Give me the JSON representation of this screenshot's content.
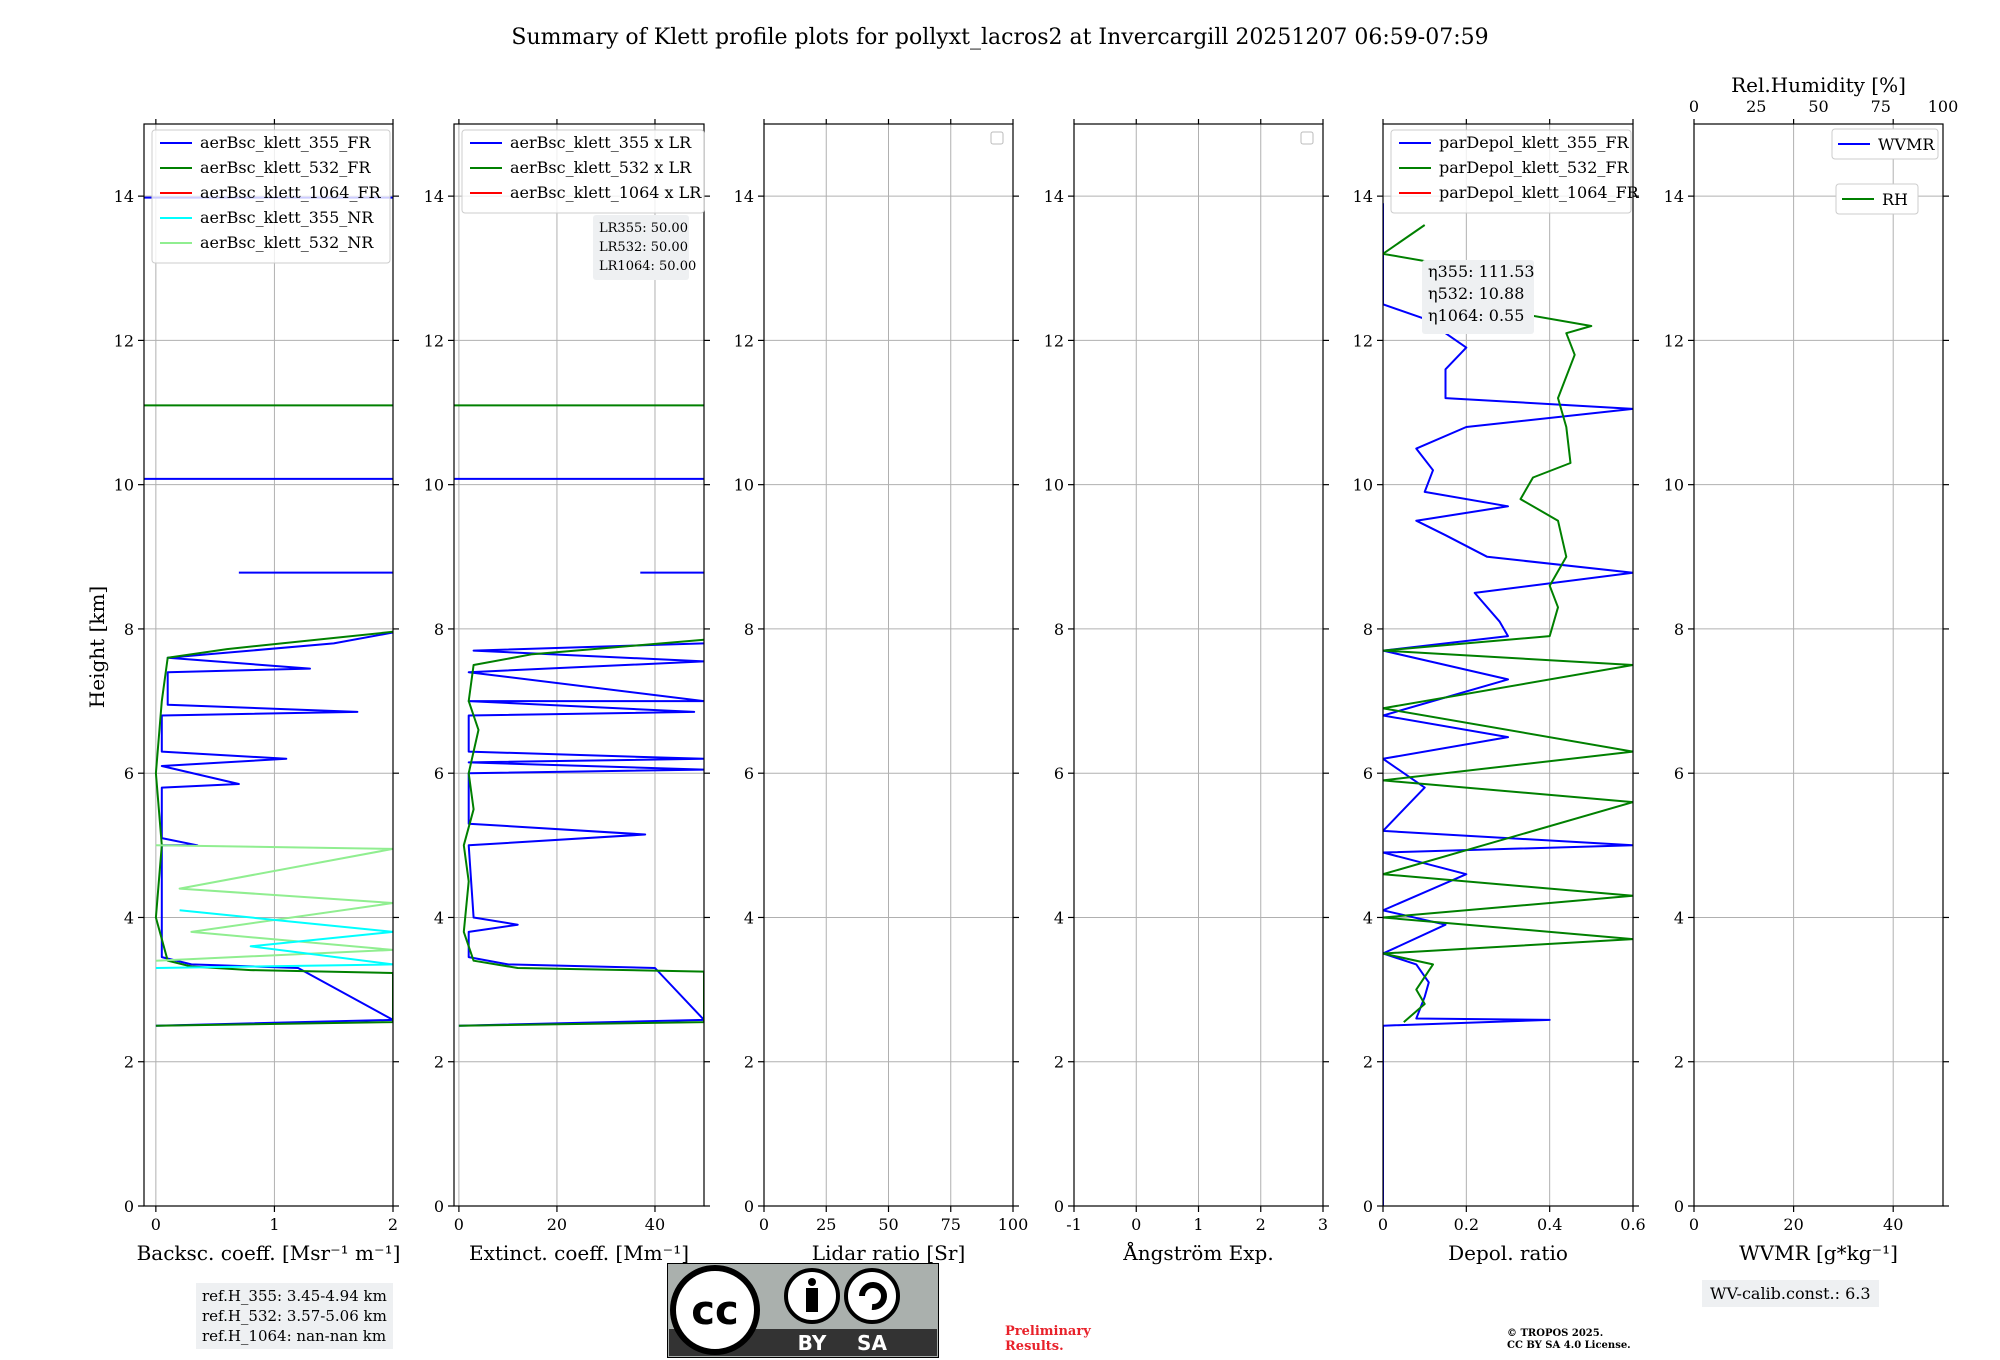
{
  "figure": {
    "title": "Summary of Klett profile plots for pollyxt_lacros2 at Invercargill 20251207 06:59-07:59"
  },
  "colors": {
    "blue": "#0000ff",
    "green": "#008000",
    "red": "#ff0000",
    "cyan": "#00ffff",
    "lightgreen": "#90ee90",
    "grid": "#b0b0b0"
  },
  "chart_data": [
    {
      "id": "bsc",
      "type": "line",
      "xlabel": "Backsc. coeff. [Msr⁻¹ m⁻¹]",
      "ylabel": "Height [km]",
      "xlim": [
        -0.1,
        2.0
      ],
      "ylim": [
        0,
        15
      ],
      "xticks": [
        0,
        1,
        2
      ],
      "yticks": [
        0,
        2,
        4,
        6,
        8,
        10,
        12,
        14
      ],
      "legend": [
        "aerBsc_klett_355_FR",
        "aerBsc_klett_532_FR",
        "aerBsc_klett_1064_FR",
        "aerBsc_klett_355_NR",
        "aerBsc_klett_532_NR"
      ],
      "legend_colors": [
        "blue",
        "green",
        "red",
        "cyan",
        "lightgreen"
      ],
      "series": [
        {
          "name": "aerBsc_klett_355_FR",
          "color": "blue",
          "points": [
            [
              0.0,
              2.5
            ],
            [
              2.0,
              2.58
            ],
            [
              1.2,
              3.3
            ],
            [
              0.3,
              3.35
            ],
            [
              0.05,
              3.45
            ],
            [
              0.05,
              5
            ],
            [
              0.35,
              5.0
            ],
            [
              0.05,
              5.1
            ],
            [
              0.05,
              5.8
            ],
            [
              0.7,
              5.85
            ],
            [
              0.05,
              6.1
            ],
            [
              1.1,
              6.2
            ],
            [
              0.05,
              6.3
            ],
            [
              0.05,
              6.8
            ],
            [
              1.7,
              6.85
            ],
            [
              0.1,
              6.95
            ],
            [
              0.1,
              7.4
            ],
            [
              1.3,
              7.45
            ],
            [
              0.1,
              7.6
            ],
            [
              1.5,
              7.8
            ],
            [
              2.0,
              7.95
            ]
          ]
        },
        {
          "name": "aerBsc_klett_532_FR",
          "color": "green",
          "points": [
            [
              0.0,
              2.5
            ],
            [
              2.0,
              2.55
            ],
            [
              2.0,
              3.23
            ],
            [
              0.8,
              3.27
            ],
            [
              0.3,
              3.32
            ],
            [
              0.1,
              3.4
            ],
            [
              0.0,
              4.0
            ],
            [
              0.05,
              5
            ],
            [
              0.0,
              6.0
            ],
            [
              0.05,
              7.0
            ],
            [
              0.1,
              7.6
            ],
            [
              0.6,
              7.72
            ],
            [
              2.0,
              7.96
            ]
          ]
        },
        {
          "name": "aerBsc_klett_532_NR",
          "color": "lightgreen",
          "points": [
            [
              0.0,
              3.4
            ],
            [
              2.0,
              3.55
            ],
            [
              0.3,
              3.8
            ],
            [
              2.0,
              4.2
            ],
            [
              0.2,
              4.4
            ],
            [
              2.0,
              4.95
            ],
            [
              0.0,
              5.0
            ]
          ]
        },
        {
          "name": "aerBsc_klett_355_NR",
          "color": "cyan",
          "points": [
            [
              0.0,
              3.3
            ],
            [
              2.0,
              3.35
            ],
            [
              0.8,
              3.6
            ],
            [
              2.0,
              3.8
            ],
            [
              0.2,
              4.1
            ]
          ]
        }
      ],
      "spikes": [
        {
          "color": "blue",
          "y": 10.08,
          "x0": -0.1,
          "x1": 2.0
        },
        {
          "color": "green",
          "y": 11.1,
          "x0": -0.1,
          "x1": 2.0
        },
        {
          "color": "blue",
          "y": 8.78,
          "x0": 0.7,
          "x1": 2.0
        },
        {
          "color": "blue",
          "y": 13.98,
          "x0": -0.1,
          "x1": 2.0
        }
      ],
      "refbox": [
        "ref.H_355: 3.45-4.94 km",
        "ref.H_532: 3.57-5.06 km",
        "ref.H_1064: nan-nan km"
      ]
    },
    {
      "id": "ext",
      "type": "line",
      "xlabel": "Extinct. coeff. [Mm⁻¹]",
      "xlim": [
        -1,
        50
      ],
      "ylim": [
        0,
        15
      ],
      "xticks": [
        0,
        20,
        40
      ],
      "yticks": [
        0,
        2,
        4,
        6,
        8,
        10,
        12,
        14
      ],
      "legend": [
        "aerBsc_klett_355 x LR",
        "aerBsc_klett_532 x LR",
        "aerBsc_klett_1064 x LR"
      ],
      "legend_colors": [
        "blue",
        "green",
        "red"
      ],
      "annotation": [
        "LR355: 50.00",
        "LR532: 50.00",
        "LR1064: 50.00"
      ],
      "series": [
        {
          "name": "aerBsc_klett_355 x LR",
          "color": "blue",
          "points": [
            [
              0,
              2.5
            ],
            [
              50,
              2.58
            ],
            [
              40,
              3.3
            ],
            [
              10,
              3.35
            ],
            [
              2,
              3.45
            ],
            [
              2,
              3.8
            ],
            [
              12,
              3.9
            ],
            [
              3,
              4.0
            ],
            [
              2,
              5.0
            ],
            [
              38,
              5.15
            ],
            [
              2,
              5.3
            ],
            [
              2,
              6.0
            ],
            [
              50,
              6.05
            ],
            [
              2,
              6.15
            ],
            [
              50,
              6.2
            ],
            [
              2,
              6.3
            ],
            [
              2,
              6.8
            ],
            [
              48,
              6.85
            ],
            [
              2,
              7.0
            ],
            [
              50,
              7.0
            ],
            [
              2,
              7.4
            ],
            [
              50,
              7.55
            ],
            [
              3,
              7.7
            ],
            [
              50,
              7.8
            ]
          ]
        },
        {
          "name": "aerBsc_klett_532 x LR",
          "color": "green",
          "points": [
            [
              0,
              2.5
            ],
            [
              50,
              2.55
            ],
            [
              50,
              3.25
            ],
            [
              12,
              3.3
            ],
            [
              3,
              3.4
            ],
            [
              1,
              3.8
            ],
            [
              2,
              4.5
            ],
            [
              1,
              5.0
            ],
            [
              3,
              5.5
            ],
            [
              2,
              6.0
            ],
            [
              4,
              6.6
            ],
            [
              2,
              7.0
            ],
            [
              3,
              7.5
            ],
            [
              15,
              7.65
            ],
            [
              50,
              7.85
            ]
          ]
        }
      ],
      "spikes": [
        {
          "color": "blue",
          "y": 10.08,
          "x0": -1,
          "x1": 50
        },
        {
          "color": "green",
          "y": 11.1,
          "x0": -1,
          "x1": 50
        },
        {
          "color": "blue",
          "y": 8.78,
          "x0": 37,
          "x1": 50
        }
      ]
    },
    {
      "id": "lr",
      "type": "line",
      "xlabel": "Lidar ratio [Sr]",
      "xlim": [
        0,
        100
      ],
      "ylim": [
        0,
        15
      ],
      "xticks": [
        0,
        25,
        50,
        75,
        100
      ],
      "yticks": [
        0,
        2,
        4,
        6,
        8,
        10,
        12,
        14
      ],
      "series": []
    },
    {
      "id": "ang",
      "type": "line",
      "xlabel": "Ångström Exp.",
      "xlim": [
        -1,
        3
      ],
      "ylim": [
        0,
        15
      ],
      "xticks": [
        -1,
        0,
        1,
        2,
        3
      ],
      "yticks": [
        0,
        2,
        4,
        6,
        8,
        10,
        12,
        14
      ],
      "series": []
    },
    {
      "id": "dep",
      "type": "line",
      "xlabel": "Depol. ratio",
      "xlim": [
        0.0,
        0.6
      ],
      "ylim": [
        0,
        15
      ],
      "xticks": [
        0.0,
        0.2,
        0.4,
        0.6
      ],
      "yticks": [
        0,
        2,
        4,
        6,
        8,
        10,
        12,
        14
      ],
      "legend": [
        "parDepol_klett_355_FR",
        "parDepol_klett_532_FR",
        "parDepol_klett_1064_FR"
      ],
      "legend_colors": [
        "blue",
        "green",
        "red"
      ],
      "annotation": [
        "η355: 111.53",
        "η532: 10.88",
        "η1064: 0.55"
      ],
      "series": [
        {
          "name": "parDepol_klett_355_FR",
          "color": "blue",
          "points": [
            [
              0.0,
              0.0
            ],
            [
              0.0,
              2.5
            ],
            [
              0.4,
              2.58
            ],
            [
              0.08,
              2.6
            ],
            [
              0.1,
              2.9
            ],
            [
              0.11,
              3.1
            ],
            [
              0.08,
              3.35
            ],
            [
              0.0,
              3.5
            ],
            [
              0.15,
              3.9
            ],
            [
              0.0,
              4.1
            ],
            [
              0.2,
              4.6
            ],
            [
              0.0,
              4.9
            ],
            [
              0.6,
              5.0
            ],
            [
              0.0,
              5.2
            ],
            [
              0.1,
              5.8
            ],
            [
              0.0,
              6.2
            ],
            [
              0.3,
              6.5
            ],
            [
              0.0,
              6.8
            ],
            [
              0.3,
              7.3
            ],
            [
              0.0,
              7.7
            ],
            [
              0.3,
              7.9
            ],
            [
              0.28,
              8.1
            ],
            [
              0.22,
              8.5
            ],
            [
              0.6,
              8.78
            ],
            [
              0.25,
              9.0
            ],
            [
              0.15,
              9.3
            ],
            [
              0.08,
              9.5
            ],
            [
              0.3,
              9.7
            ],
            [
              0.1,
              9.9
            ],
            [
              0.12,
              10.2
            ],
            [
              0.08,
              10.5
            ],
            [
              0.2,
              10.8
            ],
            [
              0.6,
              11.05
            ],
            [
              0.15,
              11.2
            ],
            [
              0.15,
              11.6
            ],
            [
              0.2,
              11.9
            ],
            [
              0.1,
              12.3
            ],
            [
              0.0,
              12.5
            ],
            [
              0.0,
              13.9
            ]
          ]
        },
        {
          "name": "parDepol_klett_532_FR",
          "color": "green",
          "points": [
            [
              0.05,
              2.55
            ],
            [
              0.1,
              2.8
            ],
            [
              0.08,
              3.0
            ],
            [
              0.12,
              3.35
            ],
            [
              0.0,
              3.5
            ],
            [
              0.6,
              3.7
            ],
            [
              0.0,
              4.0
            ],
            [
              0.6,
              4.3
            ],
            [
              0.0,
              4.6
            ],
            [
              0.6,
              5.6
            ],
            [
              0.0,
              5.9
            ],
            [
              0.6,
              6.3
            ],
            [
              0.0,
              6.9
            ],
            [
              0.6,
              7.5
            ],
            [
              0.0,
              7.7
            ],
            [
              0.4,
              7.9
            ],
            [
              0.42,
              8.3
            ],
            [
              0.4,
              8.6
            ],
            [
              0.44,
              9.0
            ],
            [
              0.42,
              9.5
            ],
            [
              0.33,
              9.8
            ],
            [
              0.36,
              10.1
            ],
            [
              0.45,
              10.3
            ],
            [
              0.44,
              10.8
            ],
            [
              0.42,
              11.2
            ],
            [
              0.46,
              11.8
            ],
            [
              0.44,
              12.1
            ],
            [
              0.5,
              12.2
            ],
            [
              0.3,
              12.4
            ],
            [
              0.1,
              12.8
            ],
            [
              0.3,
              12.9
            ],
            [
              0.0,
              13.2
            ],
            [
              0.1,
              13.6
            ]
          ]
        }
      ]
    },
    {
      "id": "wv",
      "type": "line",
      "xlabel": "WVMR [g*kg⁻¹]",
      "top_xlabel": "Rel.Humidity [%]",
      "xlim": [
        0,
        50
      ],
      "ylim": [
        0,
        15
      ],
      "xticks": [
        0,
        20,
        40
      ],
      "top_xticks": [
        0,
        25,
        50,
        75,
        100
      ],
      "yticks": [
        0,
        2,
        4,
        6,
        8,
        10,
        12,
        14
      ],
      "legend": [
        "WVMR",
        "RH"
      ],
      "legend_colors": [
        "blue",
        "green"
      ],
      "series": [],
      "calib": "WV-calib.const.: 6.3"
    }
  ],
  "footer": {
    "preliminary": "Preliminary\nResults.",
    "copyright_line1": "© TROPOS 2025.",
    "copyright_line2": "CC BY SA 4.0 License.",
    "cc_text": "cc",
    "by_text": "BY",
    "sa_text": "SA"
  }
}
